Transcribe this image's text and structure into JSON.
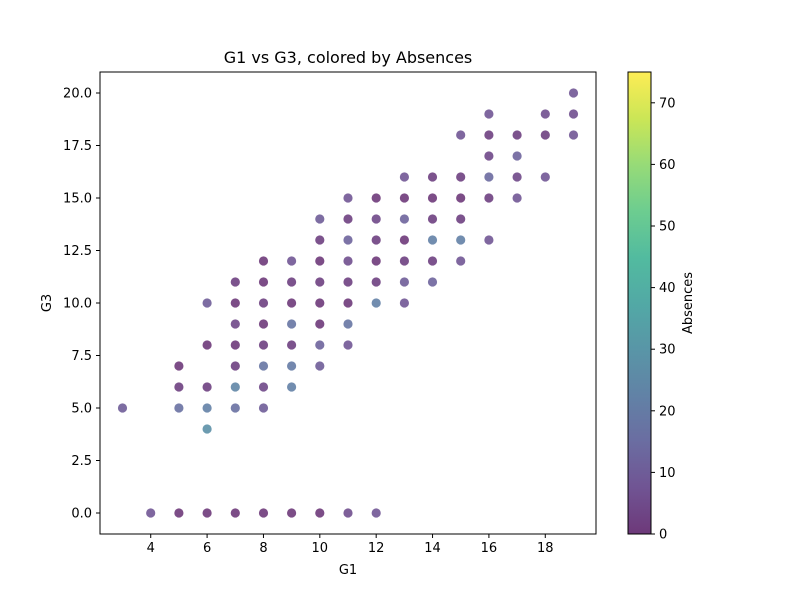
{
  "chart_data": {
    "type": "scatter",
    "title": "G1 vs G3, colored by Absences",
    "xlabel": "G1",
    "ylabel": "G3",
    "xlim": [
      2.2,
      19.8
    ],
    "ylim": [
      -1.0,
      21.0
    ],
    "xticks": [
      4,
      6,
      8,
      10,
      12,
      14,
      16,
      18
    ],
    "xtick_labels": [
      "4",
      "6",
      "8",
      "10",
      "12",
      "14",
      "16",
      "18"
    ],
    "yticks": [
      0,
      2.5,
      5,
      7.5,
      10,
      12.5,
      15,
      17.5,
      20
    ],
    "ytick_labels": [
      "0.0",
      "2.5",
      "5.0",
      "7.5",
      "10.0",
      "12.5",
      "15.0",
      "17.5",
      "20.0"
    ],
    "grid": false,
    "colormap": "viridis",
    "marker_alpha": 0.7,
    "colorbar": {
      "label": "Absences",
      "range": [
        0,
        75
      ],
      "ticks": [
        0,
        10,
        20,
        30,
        40,
        50,
        60,
        70
      ],
      "tick_labels": [
        "0",
        "10",
        "20",
        "30",
        "40",
        "50",
        "60",
        "70"
      ]
    },
    "points": [
      [
        3,
        5,
        10
      ],
      [
        4,
        0,
        8
      ],
      [
        5,
        0,
        0
      ],
      [
        5,
        7,
        0
      ],
      [
        5,
        6,
        2
      ],
      [
        5,
        5,
        16
      ],
      [
        6,
        0,
        0
      ],
      [
        6,
        8,
        0
      ],
      [
        6,
        6,
        2
      ],
      [
        6,
        5,
        22
      ],
      [
        6,
        10,
        10
      ],
      [
        6,
        4,
        28
      ],
      [
        7,
        0,
        0
      ],
      [
        7,
        11,
        2
      ],
      [
        7,
        10,
        0
      ],
      [
        7,
        9,
        4
      ],
      [
        7,
        8,
        0
      ],
      [
        7,
        7,
        2
      ],
      [
        7,
        6,
        24
      ],
      [
        7,
        5,
        16
      ],
      [
        8,
        0,
        0
      ],
      [
        8,
        12,
        0
      ],
      [
        8,
        11,
        0
      ],
      [
        8,
        10,
        2
      ],
      [
        8,
        9,
        0
      ],
      [
        8,
        8,
        2
      ],
      [
        8,
        7,
        18
      ],
      [
        8,
        6,
        4
      ],
      [
        8,
        5,
        10
      ],
      [
        9,
        0,
        0
      ],
      [
        9,
        12,
        8
      ],
      [
        9,
        11,
        2
      ],
      [
        9,
        10,
        0
      ],
      [
        9,
        9,
        18
      ],
      [
        9,
        8,
        2
      ],
      [
        9,
        7,
        20
      ],
      [
        9,
        6,
        22
      ],
      [
        10,
        0,
        0
      ],
      [
        10,
        14,
        10
      ],
      [
        10,
        13,
        2
      ],
      [
        10,
        12,
        0
      ],
      [
        10,
        11,
        2
      ],
      [
        10,
        10,
        0
      ],
      [
        10,
        9,
        0
      ],
      [
        10,
        8,
        12
      ],
      [
        10,
        7,
        10
      ],
      [
        11,
        0,
        6
      ],
      [
        11,
        15,
        8
      ],
      [
        11,
        14,
        2
      ],
      [
        11,
        13,
        12
      ],
      [
        11,
        12,
        6
      ],
      [
        11,
        11,
        2
      ],
      [
        11,
        10,
        0
      ],
      [
        11,
        9,
        18
      ],
      [
        11,
        8,
        8
      ],
      [
        12,
        0,
        8
      ],
      [
        12,
        15,
        0
      ],
      [
        12,
        14,
        4
      ],
      [
        12,
        13,
        2
      ],
      [
        12,
        12,
        0
      ],
      [
        12,
        11,
        2
      ],
      [
        12,
        10,
        22
      ],
      [
        13,
        16,
        8
      ],
      [
        13,
        15,
        0
      ],
      [
        13,
        14,
        12
      ],
      [
        13,
        13,
        0
      ],
      [
        13,
        12,
        2
      ],
      [
        13,
        11,
        10
      ],
      [
        13,
        10,
        8
      ],
      [
        14,
        16,
        2
      ],
      [
        14,
        15,
        0
      ],
      [
        14,
        14,
        2
      ],
      [
        14,
        13,
        22
      ],
      [
        14,
        12,
        2
      ],
      [
        14,
        11,
        12
      ],
      [
        15,
        18,
        8
      ],
      [
        15,
        16,
        2
      ],
      [
        15,
        15,
        0
      ],
      [
        15,
        14,
        2
      ],
      [
        15,
        13,
        22
      ],
      [
        15,
        12,
        8
      ],
      [
        16,
        19,
        8
      ],
      [
        16,
        18,
        2
      ],
      [
        16,
        17,
        4
      ],
      [
        16,
        16,
        14
      ],
      [
        16,
        15,
        2
      ],
      [
        16,
        13,
        8
      ],
      [
        17,
        18,
        2
      ],
      [
        17,
        17,
        12
      ],
      [
        17,
        16,
        4
      ],
      [
        17,
        15,
        8
      ],
      [
        18,
        19,
        6
      ],
      [
        18,
        18,
        2
      ],
      [
        18,
        16,
        8
      ],
      [
        19,
        20,
        8
      ],
      [
        19,
        19,
        6
      ],
      [
        19,
        18,
        8
      ]
    ]
  }
}
